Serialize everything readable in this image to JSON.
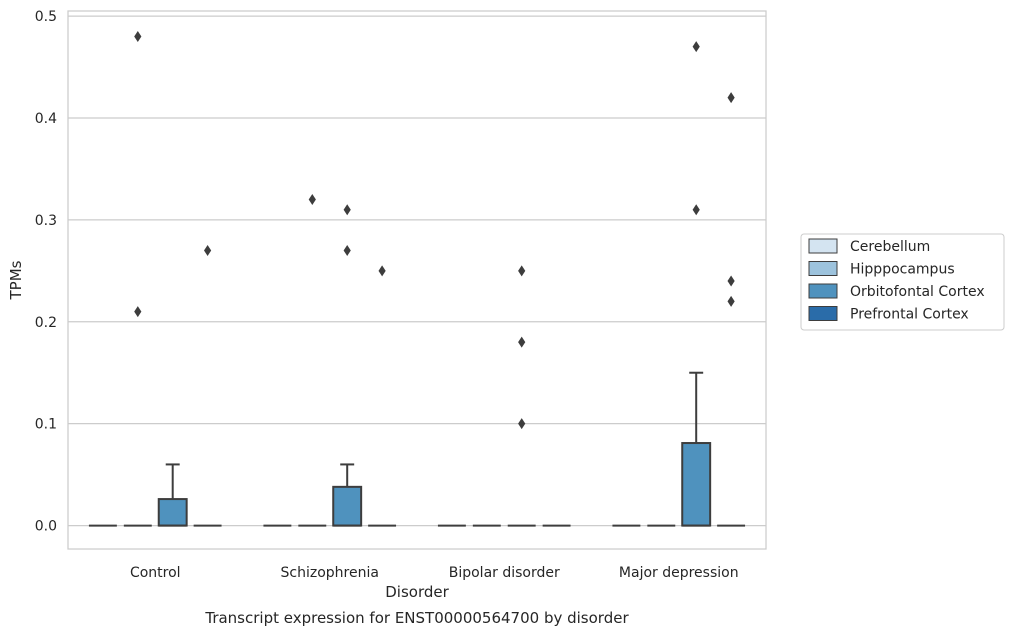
{
  "chart_data": {
    "type": "box",
    "title": "",
    "caption": "Transcript expression for ENST00000564700 by disorder",
    "xlabel": "Disorder",
    "ylabel": "TPMs",
    "ylim": [
      -0.023,
      0.505
    ],
    "yticks": [
      "0.0",
      "0.1",
      "0.2",
      "0.3",
      "0.4",
      "0.5"
    ],
    "ytick_values": [
      0.0,
      0.1,
      0.2,
      0.3,
      0.4,
      0.5
    ],
    "grid": "horizontal",
    "legend_position": "right",
    "categories": [
      "Control",
      "Schizophrenia",
      "Bipolar disorder",
      "Major depression"
    ],
    "series": [
      {
        "name": "Cerebellum",
        "color": "#d4e4f1",
        "boxes": [
          {
            "q1": 0,
            "median": 0,
            "q3": 0,
            "whisker_low": 0,
            "whisker_high": 0,
            "outliers": []
          },
          {
            "q1": 0,
            "median": 0,
            "q3": 0,
            "whisker_low": 0,
            "whisker_high": 0,
            "outliers": []
          },
          {
            "q1": 0,
            "median": 0,
            "q3": 0,
            "whisker_low": 0,
            "whisker_high": 0,
            "outliers": []
          },
          {
            "q1": 0,
            "median": 0,
            "q3": 0,
            "whisker_low": 0,
            "whisker_high": 0,
            "outliers": []
          }
        ]
      },
      {
        "name": "Hipppocampus",
        "color": "#9dc3dd",
        "boxes": [
          {
            "q1": 0,
            "median": 0,
            "q3": 0,
            "whisker_low": 0,
            "whisker_high": 0,
            "outliers": [
              0.48,
              0.21
            ]
          },
          {
            "q1": 0,
            "median": 0,
            "q3": 0,
            "whisker_low": 0,
            "whisker_high": 0,
            "outliers": [
              0.32
            ]
          },
          {
            "q1": 0,
            "median": 0,
            "q3": 0,
            "whisker_low": 0,
            "whisker_high": 0,
            "outliers": []
          },
          {
            "q1": 0,
            "median": 0,
            "q3": 0,
            "whisker_low": 0,
            "whisker_high": 0,
            "outliers": []
          }
        ]
      },
      {
        "name": "Orbitofontal Cortex",
        "color": "#4f92be",
        "boxes": [
          {
            "q1": 0,
            "median": 0,
            "q3": 0.026,
            "whisker_low": 0,
            "whisker_high": 0.06,
            "outliers": []
          },
          {
            "q1": 0,
            "median": 0,
            "q3": 0.038,
            "whisker_low": 0,
            "whisker_high": 0.06,
            "outliers": [
              0.31,
              0.27
            ]
          },
          {
            "q1": 0,
            "median": 0,
            "q3": 0,
            "whisker_low": 0,
            "whisker_high": 0,
            "outliers": [
              0.25,
              0.18,
              0.1
            ]
          },
          {
            "q1": 0,
            "median": 0,
            "q3": 0.081,
            "whisker_low": 0,
            "whisker_high": 0.15,
            "outliers": [
              0.47,
              0.31
            ]
          }
        ]
      },
      {
        "name": "Prefrontal Cortex",
        "color": "#2a6ca9",
        "boxes": [
          {
            "q1": 0,
            "median": 0,
            "q3": 0,
            "whisker_low": 0,
            "whisker_high": 0,
            "outliers": [
              0.27
            ]
          },
          {
            "q1": 0,
            "median": 0,
            "q3": 0,
            "whisker_low": 0,
            "whisker_high": 0,
            "outliers": [
              0.25
            ]
          },
          {
            "q1": 0,
            "median": 0,
            "q3": 0,
            "whisker_low": 0,
            "whisker_high": 0,
            "outliers": []
          },
          {
            "q1": 0,
            "median": 0,
            "q3": 0,
            "whisker_low": 0,
            "whisker_high": 0,
            "outliers": [
              0.42,
              0.24,
              0.22
            ]
          }
        ]
      }
    ]
  }
}
